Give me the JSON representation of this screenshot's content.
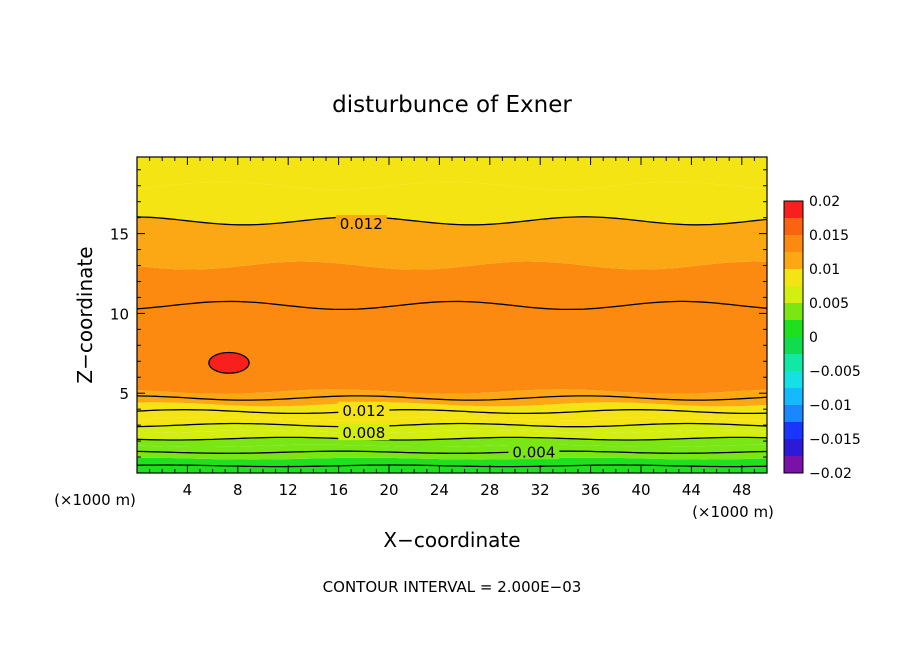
{
  "chart_data": {
    "type": "heatmap",
    "title": "disturbunce of Exner",
    "xlabel": "X−coordinate",
    "ylabel": "Z−coordinate",
    "x_unit_left": "(×1000 m)",
    "x_unit_right": "(×1000 m)",
    "xlim": [
      0,
      50
    ],
    "ylim": [
      0,
      19.8
    ],
    "x_ticks": [
      4,
      8,
      12,
      16,
      20,
      24,
      28,
      32,
      36,
      40,
      44,
      48
    ],
    "x_tick_labels": [
      "4",
      "8",
      "12",
      "16",
      "20",
      "24",
      "28",
      "32",
      "36",
      "40",
      "44",
      "48"
    ],
    "y_ticks": [
      5,
      10,
      15
    ],
    "y_tick_labels": [
      "5",
      "10",
      "15"
    ],
    "contour_interval_text": "CONTOUR INTERVAL = 2.000E−03",
    "contour_labels": [
      {
        "text": "0.012",
        "x": 17.8,
        "z": 15.6
      },
      {
        "text": "0.012",
        "x": 18.0,
        "z": 3.9
      },
      {
        "text": "0.008",
        "x": 18.0,
        "z": 2.5
      },
      {
        "text": "0.004",
        "x": 31.5,
        "z": 1.3
      }
    ],
    "colorbar": {
      "levels": [
        -0.02,
        -0.0175,
        -0.015,
        -0.0125,
        -0.01,
        -0.0075,
        -0.005,
        -0.0025,
        0,
        0.0025,
        0.005,
        0.0075,
        0.01,
        0.0125,
        0.015,
        0.0175,
        0.02
      ],
      "labels": [
        "0.02",
        "0.015",
        "0.01",
        "0.005",
        "0",
        "−0.005",
        "−0.01",
        "−0.015",
        "−0.02"
      ],
      "colors": [
        "#7a12a8",
        "#2c1ad6",
        "#1836ff",
        "#1c86ff",
        "#16b9ff",
        "#14e0e6",
        "#12e8a6",
        "#10dc4e",
        "#1ee01e",
        "#7ae614",
        "#d4ee12",
        "#f4e414",
        "#fca814",
        "#fc8a10",
        "#fa6410",
        "#f8201c",
        "#f86060",
        "#f4a0a0"
      ]
    },
    "bands": [
      {
        "z_top": 0.45,
        "value": 0.0005
      },
      {
        "z_top": 0.9,
        "value": 0.0015
      },
      {
        "z_top": 1.3,
        "value": 0.0025
      },
      {
        "z_top": 1.7,
        "value": 0.0035
      },
      {
        "z_top": 2.15,
        "value": 0.0045
      },
      {
        "z_top": 2.6,
        "value": 0.0055
      },
      {
        "z_top": 3.0,
        "value": 0.0065
      },
      {
        "z_top": 3.4,
        "value": 0.0075
      },
      {
        "z_top": 3.85,
        "value": 0.0085
      },
      {
        "z_top": 4.3,
        "value": 0.0095
      },
      {
        "z_top": 4.7,
        "value": 0.0105
      },
      {
        "z_top": 5.1,
        "value": 0.0115
      },
      {
        "z_top": 10.5,
        "value": 0.0145
      },
      {
        "z_top": 13.0,
        "value": 0.0125
      },
      {
        "z_top": 15.8,
        "value": 0.0115
      },
      {
        "z_top": 18.0,
        "value": 0.0095
      },
      {
        "z_top": 19.8,
        "value": 0.0085
      }
    ],
    "contour_lines_z": [
      0.45,
      1.3,
      2.15,
      3.0,
      3.85,
      4.7,
      10.5,
      15.8
    ],
    "max_cell": {
      "x": 7.3,
      "z": 6.9,
      "rx": 1.6,
      "rz": 0.65,
      "value": 0.0175
    }
  }
}
